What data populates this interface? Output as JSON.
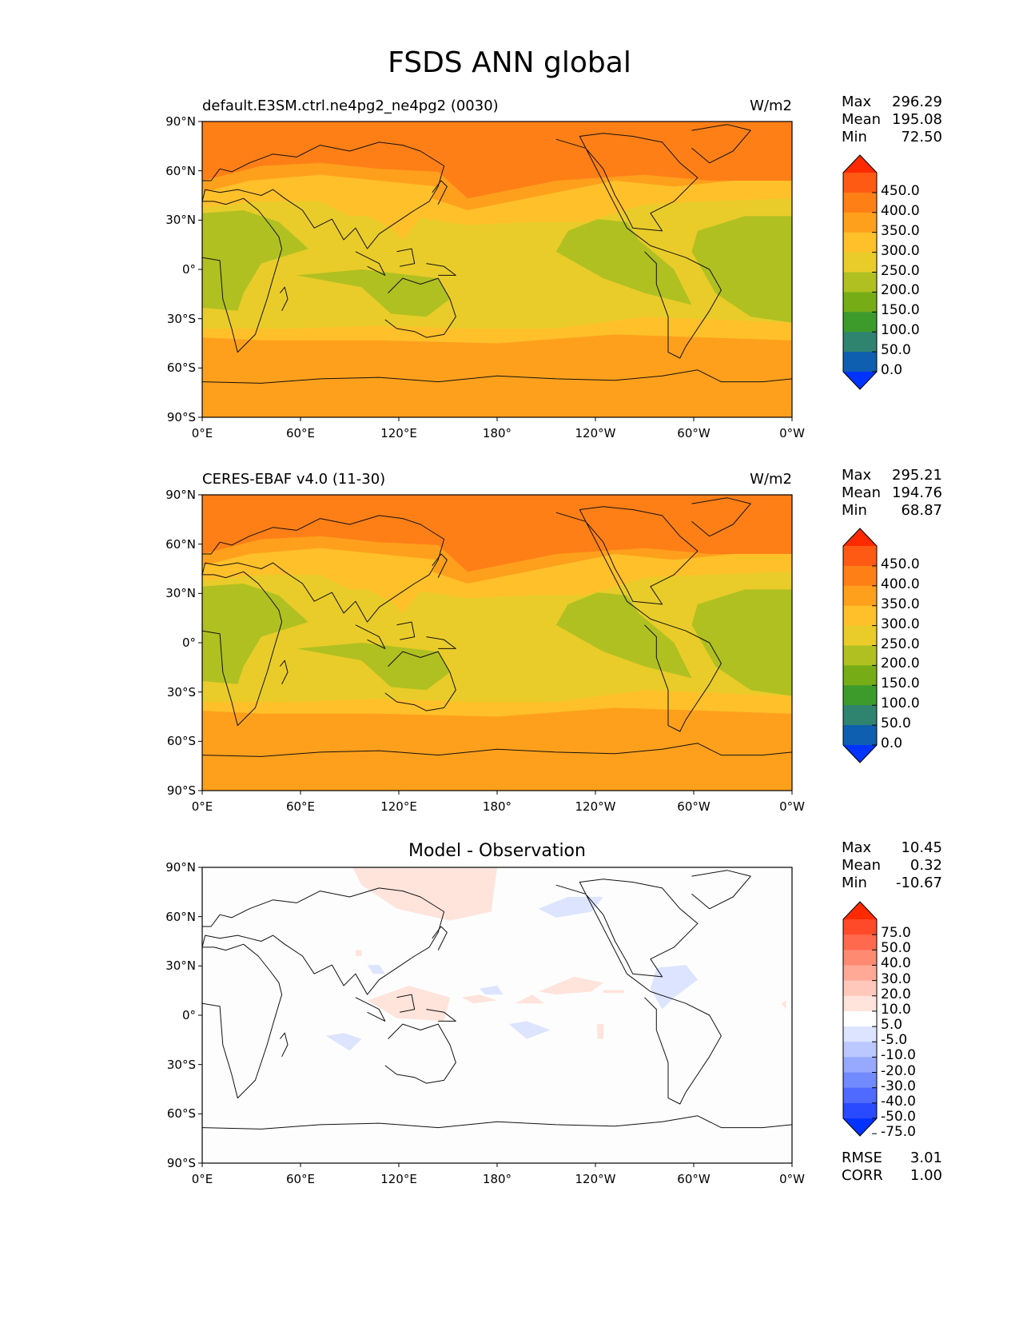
{
  "title": "FSDS ANN global",
  "lat_ticks": [
    "90°N",
    "60°N",
    "30°N",
    "0°",
    "30°S",
    "60°S",
    "90°S"
  ],
  "lon_ticks": [
    "0°E",
    "60°E",
    "120°E",
    "180°",
    "120°W",
    "60°W",
    "0°W"
  ],
  "panels": [
    {
      "left_title": "default.E3SM.ctrl.ne4pg2_ne4pg2 (0030)",
      "center_title": "",
      "right_title": "W/m2",
      "stats": [
        {
          "label": "Max",
          "value": "296.29"
        },
        {
          "label": "Mean",
          "value": "195.08"
        },
        {
          "label": "Min",
          "value": "72.50"
        }
      ],
      "colorbar": {
        "levels": [
          "450.0",
          "400.0",
          "350.0",
          "300.0",
          "250.0",
          "200.0",
          "150.0",
          "100.0",
          "50.0",
          "0.0"
        ],
        "colors": [
          "#ff2a00",
          "#ff5a14",
          "#ff7f17",
          "#ffa01c",
          "#ffc02a",
          "#e9cc29",
          "#b0c021",
          "#76ad17",
          "#3d9b2c",
          "#2f8470",
          "#0f5fb0",
          "#0033ff"
        ]
      }
    },
    {
      "left_title": "CERES-EBAF v4.0 (11-30)",
      "center_title": "",
      "right_title": "W/m2",
      "stats": [
        {
          "label": "Max",
          "value": "295.21"
        },
        {
          "label": "Mean",
          "value": "194.76"
        },
        {
          "label": "Min",
          "value": "68.87"
        }
      ],
      "colorbar": {
        "levels": [
          "450.0",
          "400.0",
          "350.0",
          "300.0",
          "250.0",
          "200.0",
          "150.0",
          "100.0",
          "50.0",
          "0.0"
        ],
        "colors": [
          "#ff2a00",
          "#ff5a14",
          "#ff7f17",
          "#ffa01c",
          "#ffc02a",
          "#e9cc29",
          "#b0c021",
          "#76ad17",
          "#3d9b2c",
          "#2f8470",
          "#0f5fb0",
          "#0033ff"
        ]
      }
    },
    {
      "left_title": "",
      "center_title": "Model - Observation",
      "right_title": "",
      "stats": [
        {
          "label": "Max",
          "value": "10.45"
        },
        {
          "label": "Mean",
          "value": "0.32"
        },
        {
          "label": "Min",
          "value": "-10.67"
        }
      ],
      "colorbar": {
        "levels": [
          "75.0",
          "50.0",
          "40.0",
          "30.0",
          "20.0",
          "10.0",
          "5.0",
          "-5.0",
          "-10.0",
          "-20.0",
          "-30.0",
          "-40.0",
          "-50.0",
          "-75.0"
        ],
        "colors": [
          "#ff2a00",
          "#ff4a2a",
          "#ff6a4e",
          "#ff8a72",
          "#ffa996",
          "#ffc8ba",
          "#ffe4dc",
          "#ffffff",
          "#dce4ff",
          "#bac8ff",
          "#96a9ff",
          "#728aff",
          "#4e6aff",
          "#2a4aff",
          "#0033ff"
        ]
      },
      "metrics": [
        {
          "label": "RMSE",
          "value": "3.01"
        },
        {
          "label": "CORR",
          "value": "1.00"
        }
      ]
    }
  ]
}
